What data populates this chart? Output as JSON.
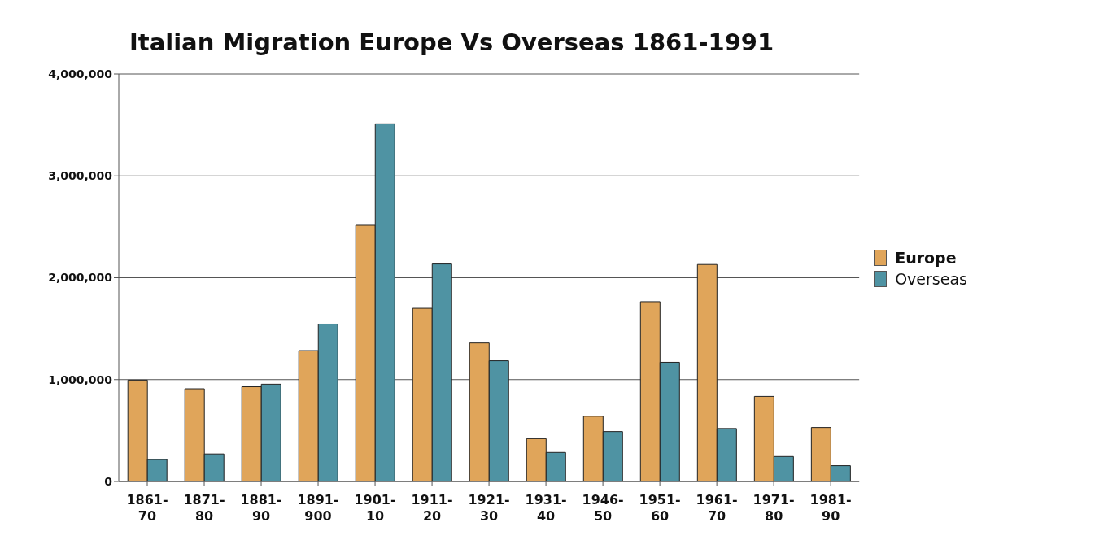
{
  "chart_data": {
    "type": "bar",
    "title": "Italian Migration Europe Vs Overseas 1861-1991",
    "categories": [
      "1861-70",
      "1871-80",
      "1881-90",
      "1891-900",
      "1901-10",
      "1911-20",
      "1921-30",
      "1931-40",
      "1946-50",
      "1951-60",
      "1961-70",
      "1971-80",
      "1981-90"
    ],
    "series": [
      {
        "name": "Europe",
        "color": "#e0a55a",
        "values": [
          995000,
          910000,
          930000,
          1285000,
          2515000,
          1700000,
          1360000,
          420000,
          640000,
          1765000,
          2130000,
          835000,
          530000
        ]
      },
      {
        "name": "Overseas",
        "color": "#4f93a3",
        "values": [
          215000,
          270000,
          955000,
          1545000,
          3510000,
          2135000,
          1185000,
          285000,
          490000,
          1170000,
          520000,
          245000,
          155000
        ]
      }
    ],
    "ylim": [
      0,
      4000000
    ],
    "yticks": [
      0,
      {
        "value": 1000000,
        "label": "1,000,000"
      },
      {
        "value": 2000000,
        "label": "2,000,000"
      },
      {
        "value": 3000000,
        "label": "3,000,000"
      },
      {
        "value": 4000000,
        "label": "4,000,000"
      }
    ],
    "grid": "y",
    "legend": "right"
  }
}
